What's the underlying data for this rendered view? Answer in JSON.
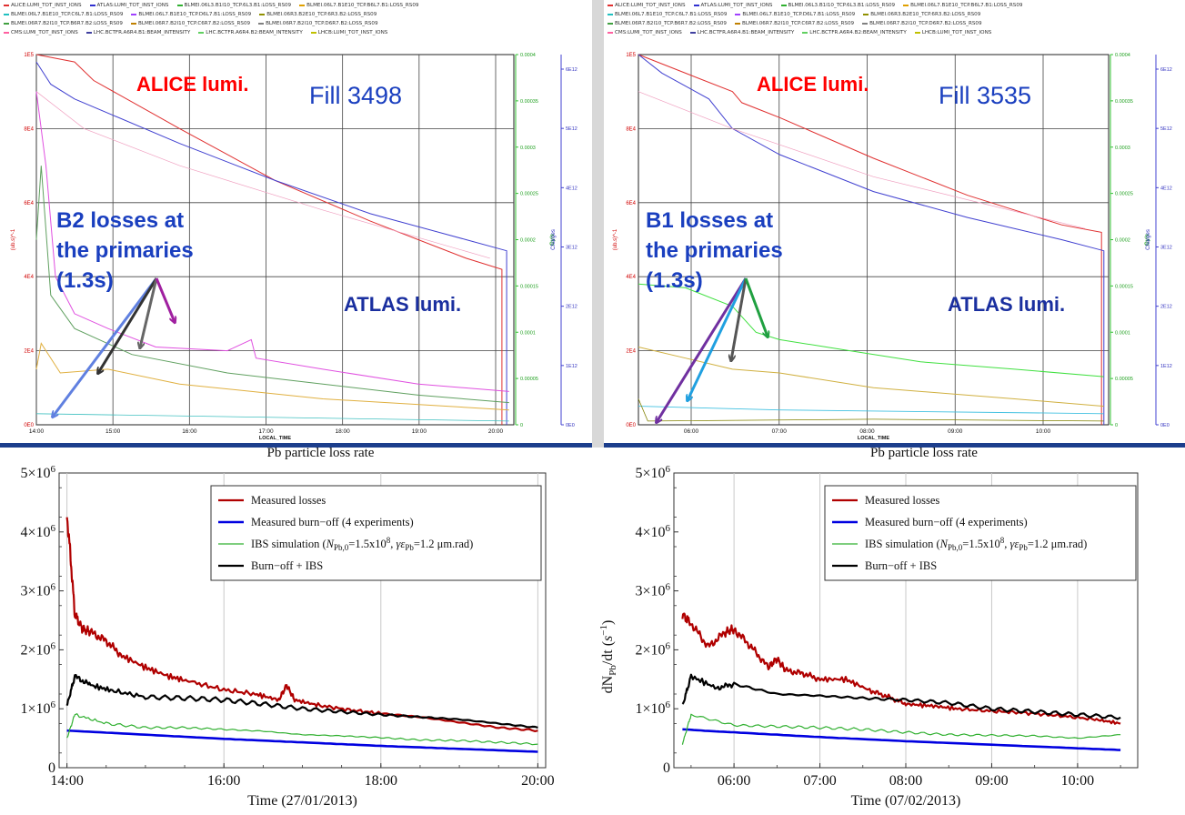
{
  "timber": [
    {
      "legend_rows": [
        [
          "ALICE:LUMI_TOT_INST_IONS",
          "ATLAS:LUMI_TOT_INST_IONS",
          "BLMEI.06L3.B1I10_TCP.6L3.B1:LOSS_RS09",
          "BLMEI.06L7.B1E10_TCP.B6L7.B1:LOSS_RS09"
        ],
        [
          "BLMEI.06L7.B1E10_TCP.C6L7.B1:LOSS_RS09",
          "BLMEI.06L7.B1E10_TCP.D6L7.B1:LOSS_RS09",
          "BLMEI.06R3.B2E10_TCP.6R3.B2:LOSS_RS09"
        ],
        [
          "BLMEI.06R7.B2I10_TCP.B6R7.B2:LOSS_RS09",
          "BLMEI.06R7.B2I10_TCP.C6R7.B2:LOSS_RS09",
          "BLMEI.06R7.B2I10_TCP.D6R7.B2:LOSS_RS09"
        ],
        [
          "CMS:LUMI_TOT_INST_IONS",
          "LHC.BCTFR.A6R4.B1:BEAM_INTENSITY",
          "LHC.BCTFR.A6R4.B2:BEAM_INTENSITY",
          "LHCB:LUMI_TOT_INST_IONS"
        ]
      ],
      "ylabel_left": "(ub.s)^-1",
      "ylabel_gy": "Gy/s",
      "ylabel_charges": "Charges",
      "yticks_left": [
        "1E5",
        "8E4",
        "6E4",
        "4E4",
        "2E4",
        "0E0"
      ],
      "yticks_gy": [
        "0.0004",
        "0.00035",
        "0.0003",
        "0.00025",
        "0.0002",
        "0.00015",
        "0.0001",
        "0.00005",
        "0"
      ],
      "yticks_charges": [
        "6E12",
        "5E12",
        "4E12",
        "3E12",
        "2E12",
        "1E12",
        "0E0"
      ],
      "xticks": [
        "14:00",
        "15:00",
        "16:00",
        "17:00",
        "18:00",
        "19:00",
        "20:00"
      ],
      "xaxis_label": "LOCAL_TIME",
      "annot_alice": "ALICE lumi.",
      "annot_fill": "Fill 3498",
      "annot_losses": [
        "B2 losses at",
        "the primaries",
        "(1.3s)"
      ],
      "annot_atlas": "ATLAS lumi."
    },
    {
      "legend_rows": [
        [
          "ALICE:LUMI_TOT_INST_IONS",
          "ATLAS:LUMI_TOT_INST_IONS",
          "BLMEI.06L3.B1I10_TCP.6L3.B1:LOSS_RS09",
          "BLMEI.06L7.B1E10_TCP.B6L7.B1:LOSS_RS09"
        ],
        [
          "BLMEI.06L7.B1E10_TCP.C6L7.B1:LOSS_RS09",
          "BLMEI.06L7.B1E10_TCP.D6L7.B1:LOSS_RS09",
          "BLMEI.06R3.B2E10_TCP.6R3.B2:LOSS_RS09"
        ],
        [
          "BLMEI.06R7.B2I10_TCP.B6R7.B2:LOSS_RS09",
          "BLMEI.06R7.B2I10_TCP.C6R7.B2:LOSS_RS09",
          "BLMEI.06R7.B2I10_TCP.D6R7.B2:LOSS_RS09"
        ],
        [
          "CMS:LUMI_TOT_INST_IONS",
          "LHC.BCTFR.A6R4.B1:BEAM_INTENSITY",
          "LHC.BCTFR.A6R4.B2:BEAM_INTENSITY",
          "LHCB:LUMI_TOT_INST_IONS"
        ]
      ],
      "ylabel_left": "(ub.s)^-1",
      "ylabel_gy": "Gy/s",
      "ylabel_charges": "Charges",
      "yticks_left": [
        "1E5",
        "8E4",
        "6E4",
        "4E4",
        "2E4",
        "0E0"
      ],
      "yticks_gy": [
        "0.0004",
        "0.00035",
        "0.0003",
        "0.00025",
        "0.0002",
        "0.00015",
        "0.0001",
        "0.00005",
        "0"
      ],
      "yticks_charges": [
        "6E12",
        "5E12",
        "4E12",
        "3E12",
        "2E12",
        "1E12",
        "0E0"
      ],
      "xticks": [
        "06:00",
        "07:00",
        "08:00",
        "09:00",
        "10:00"
      ],
      "xaxis_label": "LOCAL_TIME",
      "annot_alice": "ALICE lumi.",
      "annot_fill": "Fill 3535",
      "annot_losses": [
        "B1 losses at",
        "the primaries",
        "(1.3s)"
      ],
      "annot_atlas": "ATLAS lumi."
    }
  ],
  "legend_colors": [
    "#e03030",
    "#3030d0",
    "#30b030",
    "#e0a000",
    "#20c0c0",
    "#a040ff",
    "#909000",
    "#40a040",
    "#c08000",
    "#808080",
    "#ff60a0",
    "#4040a0",
    "#60d060",
    "#c0c000"
  ],
  "chart_data": [
    {
      "type": "line",
      "title": "Pb particle loss rate",
      "xlabel": "Time (27/01/2013)",
      "ylabel": "",
      "xlim": [
        13.9,
        20.1
      ],
      "ylim": [
        0,
        5000000
      ],
      "xticks": [
        "14:00",
        "16:00",
        "18:00",
        "20:00"
      ],
      "yticks": [
        "0",
        "1×10^6",
        "2×10^6",
        "3×10^6",
        "4×10^6",
        "5×10^6"
      ],
      "legend_position": "top-right",
      "grid": "vertical",
      "series": [
        {
          "name": "Measured losses",
          "color": "#b00000",
          "x": [
            14.0,
            14.05,
            14.1,
            14.2,
            14.3,
            14.5,
            14.7,
            15.0,
            15.3,
            15.6,
            16.0,
            16.4,
            16.7,
            16.8,
            16.9,
            17.2,
            17.6,
            18.0,
            18.5,
            19.0,
            19.5,
            20.0
          ],
          "y": [
            4300000,
            3500000,
            2600000,
            2350000,
            2300000,
            2150000,
            1900000,
            1700000,
            1550000,
            1450000,
            1320000,
            1250000,
            1150000,
            1400000,
            1150000,
            1060000,
            980000,
            920000,
            860000,
            770000,
            680000,
            630000
          ]
        },
        {
          "name": "Measured burn-off (4 experiments)",
          "color": "#0000e0",
          "x": [
            14.0,
            15.0,
            16.0,
            17.0,
            18.0,
            19.0,
            20.0
          ],
          "y": [
            630000,
            560000,
            490000,
            430000,
            370000,
            320000,
            270000
          ]
        },
        {
          "name": "IBS simulation (N_Pb,0=1.5x10^8, γε_Pb=1.2 μm.rad)",
          "color": "#30b030",
          "x": [
            14.0,
            14.1,
            14.5,
            15.0,
            15.5,
            16.0,
            16.5,
            17.0,
            17.5,
            18.0,
            18.5,
            19.0,
            19.5,
            20.0
          ],
          "y": [
            500000,
            900000,
            750000,
            680000,
            680000,
            650000,
            620000,
            560000,
            540000,
            510000,
            470000,
            460000,
            430000,
            400000
          ]
        },
        {
          "name": "Burn-off + IBS",
          "color": "#000000",
          "x": [
            14.0,
            14.1,
            14.3,
            14.6,
            15.0,
            15.5,
            16.0,
            16.5,
            17.0,
            17.5,
            18.0,
            18.5,
            19.0,
            19.5,
            20.0
          ],
          "y": [
            1050000,
            1550000,
            1400000,
            1300000,
            1200000,
            1180000,
            1150000,
            1080000,
            1000000,
            950000,
            900000,
            860000,
            820000,
            750000,
            680000
          ]
        }
      ]
    },
    {
      "type": "line",
      "title": "Pb particle loss rate",
      "xlabel": "Time (07/02/2013)",
      "ylabel": "dN_Pb/dt (s^-1)",
      "xlim": [
        5.3,
        10.7
      ],
      "ylim": [
        0,
        5000000
      ],
      "xticks": [
        "06:00",
        "07:00",
        "08:00",
        "09:00",
        "10:00"
      ],
      "yticks": [
        "0",
        "1×10^6",
        "2×10^6",
        "3×10^6",
        "4×10^6",
        "5×10^6"
      ],
      "legend_position": "top-right",
      "grid": "vertical",
      "series": [
        {
          "name": "Measured losses",
          "color": "#b00000",
          "x": [
            5.4,
            5.5,
            5.7,
            5.9,
            6.0,
            6.2,
            6.4,
            6.5,
            6.6,
            6.8,
            7.0,
            7.3,
            7.6,
            7.8,
            8.0,
            8.3,
            8.6,
            9.0,
            9.4,
            9.8,
            10.2,
            10.5
          ],
          "y": [
            2600000,
            2450000,
            2050000,
            2300000,
            2350000,
            2050000,
            1700000,
            1850000,
            1650000,
            1600000,
            1500000,
            1500000,
            1300000,
            1200000,
            1080000,
            1050000,
            1000000,
            960000,
            930000,
            880000,
            820000,
            750000
          ]
        },
        {
          "name": "Measured burn-off (4 experiments)",
          "color": "#0000e0",
          "x": [
            5.4,
            6.0,
            7.0,
            8.0,
            9.0,
            10.0,
            10.5
          ],
          "y": [
            650000,
            600000,
            520000,
            450000,
            390000,
            330000,
            300000
          ]
        },
        {
          "name": "IBS simulation (N_Pb,0=1.5x10^8, γε_Pb=1.2 μm.rad)",
          "color": "#30b030",
          "x": [
            5.4,
            5.5,
            6.0,
            6.5,
            7.0,
            7.5,
            8.0,
            8.5,
            9.0,
            9.5,
            10.0,
            10.5
          ],
          "y": [
            400000,
            900000,
            720000,
            700000,
            680000,
            650000,
            600000,
            560000,
            550000,
            540000,
            500000,
            560000
          ]
        },
        {
          "name": "Burn-off + IBS",
          "color": "#000000",
          "x": [
            5.4,
            5.5,
            5.8,
            6.0,
            6.5,
            7.0,
            7.5,
            8.0,
            8.5,
            9.0,
            9.5,
            10.0,
            10.5
          ],
          "y": [
            1050000,
            1550000,
            1350000,
            1420000,
            1250000,
            1220000,
            1180000,
            1150000,
            1100000,
            1000000,
            950000,
            900000,
            850000
          ]
        }
      ]
    }
  ],
  "legend_labels_html": {
    "measured": "Measured losses",
    "burnoff": "Measured burn−off (4 experiments)",
    "ibs_prefix": "IBS simulation (",
    "ibs_suffix": "=1.2 μm.rad)",
    "sum": "Burn−off + IBS"
  }
}
